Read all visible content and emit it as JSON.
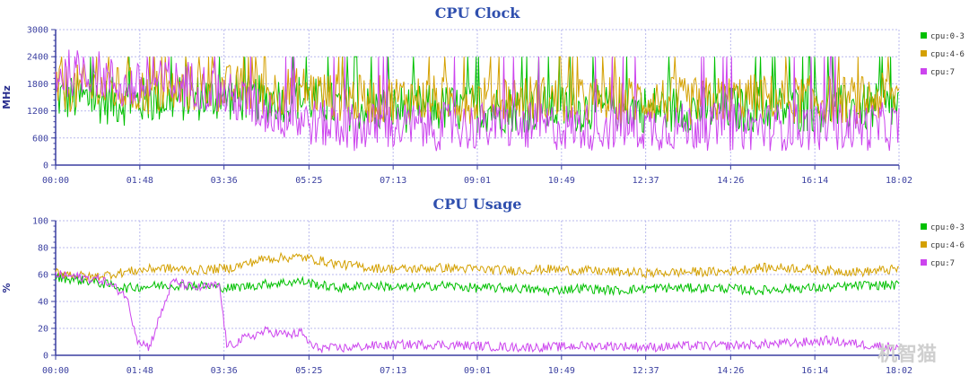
{
  "watermark": "机智猫",
  "chart_data": [
    {
      "type": "line",
      "title": "CPU Clock",
      "ylabel": "MHz",
      "ylim": [
        0,
        3000
      ],
      "yticks": [
        0,
        600,
        1200,
        1800,
        2400,
        3000
      ],
      "x_ticks": [
        "00:00",
        "01:48",
        "03:36",
        "05:25",
        "07:13",
        "09:01",
        "10:49",
        "12:37",
        "14:26",
        "16:14",
        "18:02"
      ],
      "xlim": [
        "00:00",
        "18:02"
      ],
      "grid": true,
      "legend_position": "right",
      "series": [
        {
          "name": "cpu:0-3",
          "color": "#00c000",
          "x": [
            "00:00",
            "00:45",
            "01:30",
            "02:15",
            "03:00",
            "03:45",
            "04:30",
            "05:15",
            "06:00",
            "06:45",
            "07:30",
            "08:15",
            "09:00",
            "09:45",
            "10:30",
            "11:15",
            "12:00",
            "12:45",
            "13:30",
            "14:15",
            "15:00",
            "15:45",
            "16:30",
            "17:15",
            "18:00"
          ],
          "values": [
            1500,
            1450,
            1400,
            1450,
            1500,
            1500,
            1450,
            1500,
            1300,
            1250,
            1250,
            1250,
            1250,
            1250,
            1250,
            1250,
            1250,
            1250,
            1250,
            1250,
            1250,
            1250,
            1250,
            1250,
            1300
          ]
        },
        {
          "name": "cpu:4-6",
          "color": "#d4a000",
          "x": [
            "00:00",
            "00:45",
            "01:30",
            "02:15",
            "03:00",
            "03:45",
            "04:30",
            "05:15",
            "06:00",
            "06:45",
            "07:30",
            "08:15",
            "09:00",
            "09:45",
            "10:30",
            "11:15",
            "12:00",
            "12:45",
            "13:30",
            "14:15",
            "15:00",
            "15:45",
            "16:30",
            "17:15",
            "18:00"
          ],
          "values": [
            1700,
            1700,
            1650,
            1600,
            1700,
            1700,
            1600,
            1700,
            1500,
            1450,
            1500,
            1450,
            1450,
            1500,
            1450,
            1400,
            1450,
            1450,
            1400,
            1450,
            1500,
            1450,
            1450,
            1450,
            1550
          ]
        },
        {
          "name": "cpu:7",
          "color": "#cc44ee",
          "x": [
            "00:00",
            "00:45",
            "01:30",
            "02:15",
            "03:00",
            "03:45",
            "04:30",
            "05:15",
            "06:00",
            "06:45",
            "07:30",
            "08:15",
            "09:00",
            "09:45",
            "10:30",
            "11:15",
            "12:00",
            "12:45",
            "13:30",
            "14:15",
            "15:00",
            "15:45",
            "16:30",
            "17:15",
            "18:00"
          ],
          "values": [
            2000,
            2100,
            1700,
            1800,
            1800,
            1500,
            1200,
            1000,
            850,
            850,
            850,
            850,
            850,
            850,
            850,
            850,
            850,
            850,
            850,
            850,
            850,
            850,
            850,
            850,
            850
          ]
        }
      ]
    },
    {
      "type": "line",
      "title": "CPU Usage",
      "ylabel": "%",
      "ylim": [
        0,
        100
      ],
      "yticks": [
        0,
        20,
        40,
        60,
        80,
        100
      ],
      "x_ticks": [
        "00:00",
        "01:48",
        "03:36",
        "05:25",
        "07:13",
        "09:01",
        "10:49",
        "12:37",
        "14:26",
        "16:14",
        "18:02"
      ],
      "xlim": [
        "00:00",
        "18:02"
      ],
      "grid": true,
      "legend_position": "right",
      "series": [
        {
          "name": "cpu:0-3",
          "color": "#00c000",
          "x": [
            "00:00",
            "00:45",
            "01:30",
            "02:15",
            "03:00",
            "03:45",
            "04:30",
            "05:15",
            "06:00",
            "06:45",
            "07:30",
            "08:15",
            "09:00",
            "09:45",
            "10:30",
            "11:15",
            "12:00",
            "12:45",
            "13:30",
            "14:15",
            "15:00",
            "15:45",
            "16:30",
            "17:15",
            "18:00"
          ],
          "values": [
            58,
            55,
            50,
            52,
            52,
            50,
            53,
            55,
            50,
            52,
            50,
            52,
            50,
            50,
            48,
            50,
            48,
            50,
            50,
            50,
            48,
            50,
            50,
            52,
            52
          ]
        },
        {
          "name": "cpu:4-6",
          "color": "#d4a000",
          "x": [
            "00:00",
            "00:45",
            "01:30",
            "02:15",
            "03:00",
            "03:45",
            "04:30",
            "05:15",
            "06:00",
            "06:45",
            "07:30",
            "08:15",
            "09:00",
            "09:45",
            "10:30",
            "11:15",
            "12:00",
            "12:45",
            "13:30",
            "14:15",
            "15:00",
            "15:45",
            "16:30",
            "17:15",
            "18:00"
          ],
          "values": [
            62,
            58,
            62,
            65,
            63,
            65,
            72,
            73,
            68,
            65,
            64,
            65,
            64,
            63,
            64,
            63,
            62,
            61,
            62,
            62,
            65,
            65,
            63,
            62,
            64
          ]
        },
        {
          "name": "cpu:7",
          "color": "#cc44ee",
          "x": [
            "00:00",
            "00:30",
            "01:00",
            "01:30",
            "01:45",
            "02:00",
            "02:30",
            "03:00",
            "03:30",
            "03:40",
            "04:00",
            "04:30",
            "05:00",
            "05:15",
            "05:30",
            "06:00",
            "06:45",
            "07:30",
            "08:15",
            "09:00",
            "09:45",
            "10:30",
            "11:15",
            "12:00",
            "12:45",
            "13:30",
            "14:15",
            "15:00",
            "15:45",
            "16:30",
            "17:15",
            "18:00"
          ],
          "values": [
            60,
            58,
            56,
            45,
            12,
            6,
            55,
            50,
            52,
            6,
            12,
            18,
            15,
            17,
            6,
            5,
            7,
            8,
            8,
            7,
            6,
            6,
            7,
            7,
            6,
            7,
            7,
            8,
            9,
            11,
            8,
            6
          ]
        }
      ]
    }
  ]
}
